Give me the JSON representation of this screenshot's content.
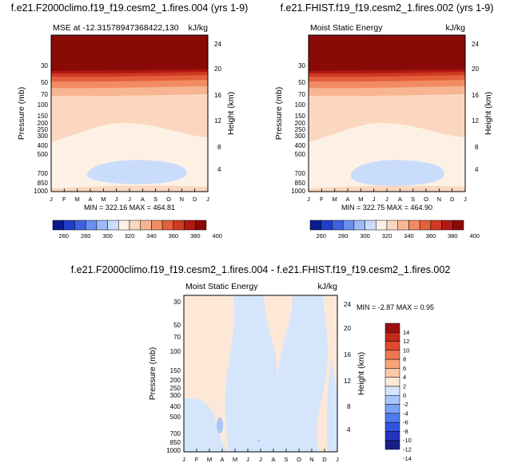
{
  "colors": {
    "seq": [
      "#0a1a8c",
      "#1f3fc8",
      "#3b63e0",
      "#6a8ff0",
      "#9db9f7",
      "#c9dcfb",
      "#fdf1e6",
      "#fbd7bf",
      "#f7b592",
      "#f28b63",
      "#e4603d",
      "#cf3a22",
      "#b01a12",
      "#8a0a08"
    ],
    "diff": [
      "#1a1f8a",
      "#2333c0",
      "#2f56e0",
      "#4d7cf0",
      "#7aa3f7",
      "#a9c6fa",
      "#d4e5fc",
      "#fde8d8",
      "#fbc8a8",
      "#f7a37a",
      "#ee7750",
      "#dd4b2c",
      "#c2281a",
      "#9c0f0e"
    ]
  },
  "panels": [
    {
      "title": "f.e21.F2000climo.f19_f19.cesm2_1.fires.004 (yrs 1-9)",
      "left_label": "MSE at -12.31578947368422,130",
      "right_label": "kJ/kg",
      "minmax": "MIN = 322.16  MAX = 464.81"
    },
    {
      "title": "f.e21.FHIST.f19_f19.cesm2_1.fires.002 (yrs 1-9)",
      "left_label": "Moist Static Energy",
      "right_label": "kJ/kg",
      "minmax": "MIN = 322.75  MAX = 464.90"
    },
    {
      "title": "f.e21.F2000climo.f19_f19.cesm2_1.fires.004 - f.e21.FHIST.f19_f19.cesm2_1.fires.002",
      "left_label": "Moist Static Energy",
      "right_label": "kJ/kg",
      "minmax": "MIN = -2.87  MAX =  0.95"
    }
  ],
  "chart_data": [
    {
      "type": "heatmap",
      "title": "f.e21.F2000climo.f19_f19.cesm2_1.fires.004 (yrs 1-9)",
      "x": [
        "J",
        "F",
        "M",
        "A",
        "M",
        "J",
        "J",
        "A",
        "S",
        "O",
        "N",
        "D",
        "J"
      ],
      "ylabel": "Pressure (mb)",
      "yticks": [
        "30",
        "50",
        "70",
        "100",
        "150",
        "200",
        "250",
        "300",
        "400",
        "500",
        "700",
        "850",
        "1000"
      ],
      "y2label": "Height (km)",
      "y2ticks": [
        "4",
        "8",
        "12",
        "16",
        "20",
        "24"
      ],
      "colorbar": [
        "260",
        "280",
        "300",
        "320",
        "340",
        "360",
        "380",
        "400"
      ],
      "min": 322.16,
      "max": 464.81
    },
    {
      "type": "heatmap",
      "title": "f.e21.FHIST.f19_f19.cesm2_1.fires.002 (yrs 1-9)",
      "x": [
        "J",
        "F",
        "M",
        "A",
        "M",
        "J",
        "J",
        "A",
        "S",
        "O",
        "N",
        "D",
        "J"
      ],
      "ylabel": "Pressure (mb)",
      "yticks": [
        "30",
        "50",
        "70",
        "100",
        "150",
        "200",
        "250",
        "300",
        "400",
        "500",
        "700",
        "850",
        "1000"
      ],
      "y2label": "Height (km)",
      "y2ticks": [
        "4",
        "8",
        "12",
        "16",
        "20",
        "24"
      ],
      "colorbar": [
        "260",
        "280",
        "300",
        "320",
        "340",
        "360",
        "380",
        "400"
      ],
      "min": 322.75,
      "max": 464.9
    },
    {
      "type": "heatmap",
      "title": "f.e21.F2000climo.f19_f19.cesm2_1.fires.004 - f.e21.FHIST.f19_f19.cesm2_1.fires.002",
      "x": [
        "J",
        "F",
        "M",
        "A",
        "M",
        "J",
        "J",
        "A",
        "S",
        "O",
        "N",
        "D",
        "J"
      ],
      "ylabel": "Pressure (mb)",
      "yticks": [
        "30",
        "50",
        "70",
        "100",
        "150",
        "200",
        "250",
        "300",
        "400",
        "500",
        "700",
        "850",
        "1000"
      ],
      "y2label": "Height (km)",
      "y2ticks": [
        "4",
        "8",
        "12",
        "16",
        "20",
        "24"
      ],
      "colorbar": [
        "14",
        "12",
        "10",
        "8",
        "6",
        "4",
        "2",
        "0",
        "-2",
        "-4",
        "-6",
        "-8",
        "-10",
        "-12",
        "-14"
      ],
      "min": -2.87,
      "max": 0.95
    }
  ]
}
